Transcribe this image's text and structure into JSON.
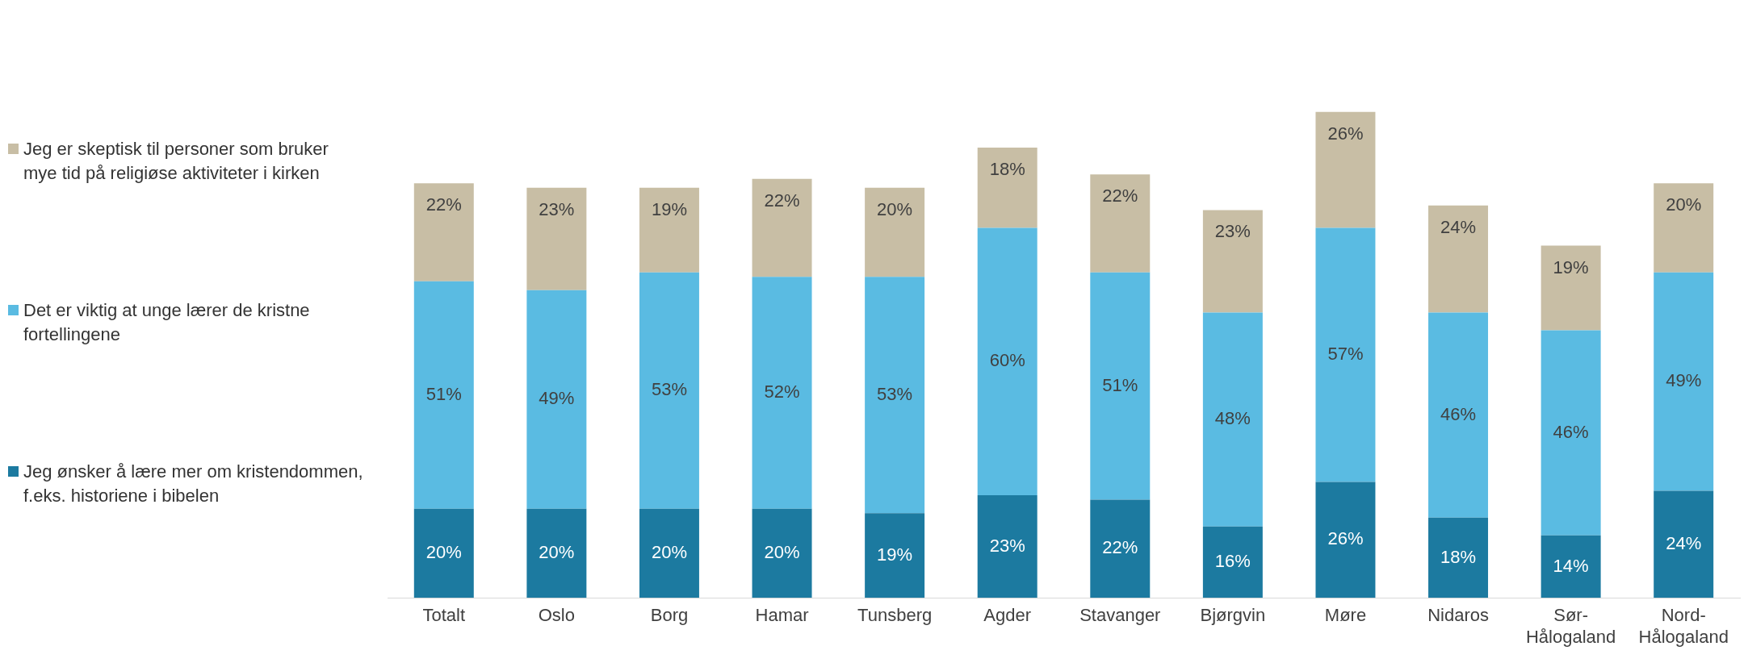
{
  "chart_data": {
    "type": "bar",
    "stacked": true,
    "legend": "left",
    "grid": false,
    "tick_labels": "x",
    "categories": [
      "Totalt",
      "Oslo",
      "Borg",
      "Hamar",
      "Tunsberg",
      "Agder",
      "Stavanger",
      "Bjørgvin",
      "Møre",
      "Nidaros",
      "Sør-Hålogaland",
      "Nord-Hålogaland"
    ],
    "series": [
      {
        "name": "Jeg ønsker å lære mer om kristendommen, f.eks. historiene i bibelen",
        "color": "#1c7aa0",
        "values": [
          20,
          20,
          20,
          20,
          19,
          23,
          22,
          16,
          26,
          18,
          14,
          24
        ],
        "value_labels": [
          "20%",
          "20%",
          "20%",
          "20%",
          "19%",
          "23%",
          "22%",
          "16%",
          "26%",
          "18%",
          "14%",
          "24%"
        ]
      },
      {
        "name": "Det er viktig at unge lærer de kristne fortellingene",
        "color": "#5abbe2",
        "values": [
          51,
          49,
          53,
          52,
          53,
          60,
          51,
          48,
          57,
          46,
          46,
          49
        ],
        "value_labels": [
          "51%",
          "49%",
          "53%",
          "52%",
          "53%",
          "60%",
          "51%",
          "48%",
          "57%",
          "46%",
          "46%",
          "49%"
        ]
      },
      {
        "name": "Jeg er skeptisk til personer som bruker mye tid på religiøse aktiviteter i kirken",
        "color": "#c8bea5",
        "values": [
          22,
          23,
          19,
          22,
          20,
          18,
          22,
          23,
          26,
          24,
          19,
          20
        ],
        "value_labels": [
          "22%",
          "23%",
          "19%",
          "22%",
          "20%",
          "18%",
          "22%",
          "23%",
          "26%",
          "24%",
          "19%",
          "20%"
        ]
      }
    ]
  }
}
